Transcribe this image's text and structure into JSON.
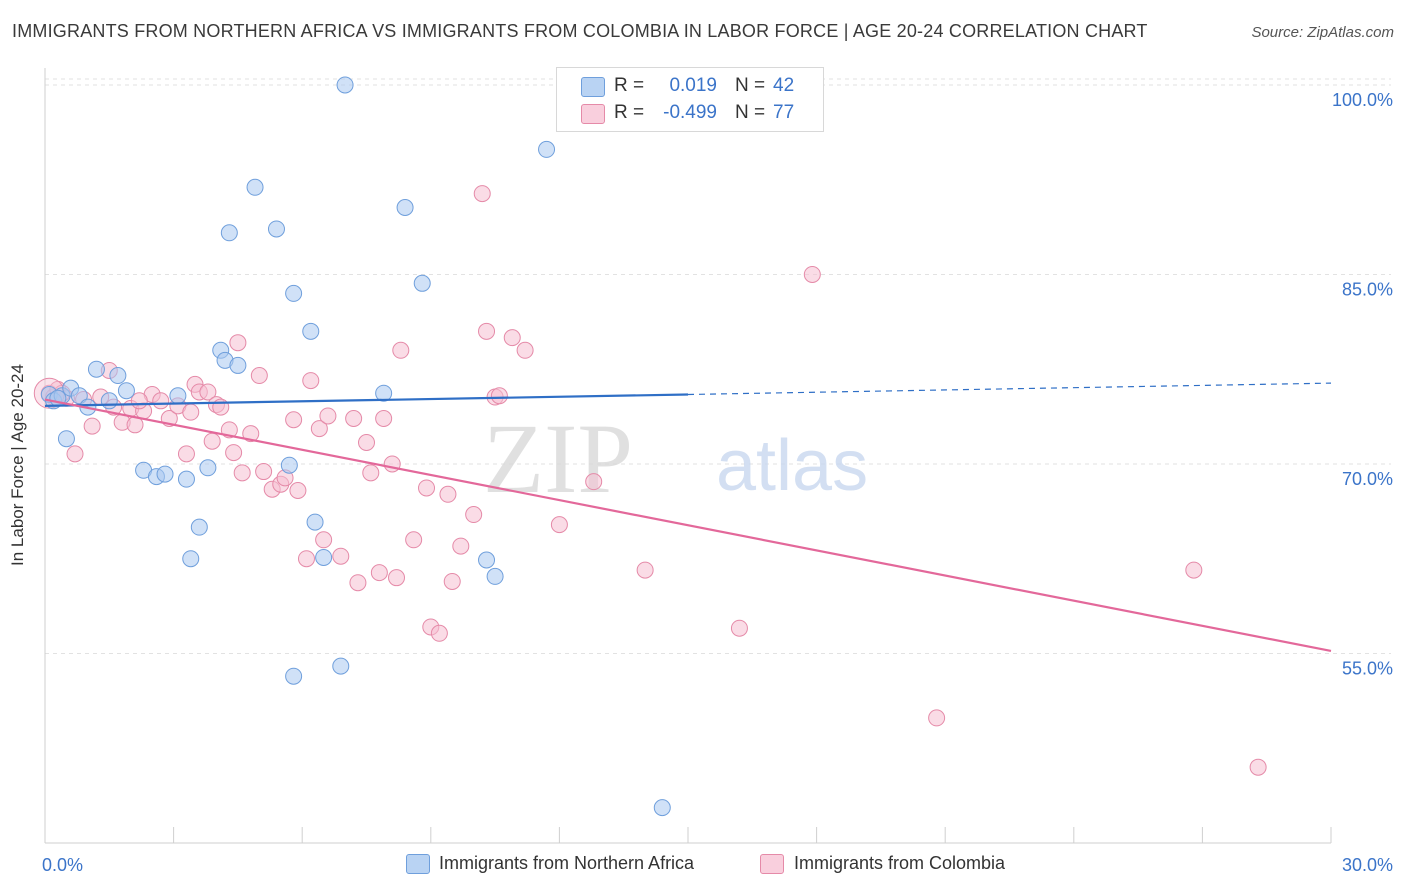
{
  "title": "IMMIGRANTS FROM NORTHERN AFRICA VS IMMIGRANTS FROM COLOMBIA IN LABOR FORCE | AGE 20-24 CORRELATION CHART",
  "source": "Source: ZipAtlas.com",
  "watermark": {
    "zip": "ZIP",
    "atlas": "atlas"
  },
  "legend": {
    "rows": [
      {
        "r_label": "R =",
        "r_value": "0.019",
        "n_label": "N =",
        "n_value": "42"
      },
      {
        "r_label": "R =",
        "r_value": "-0.499",
        "n_label": "N =",
        "n_value": "77"
      }
    ]
  },
  "bottom_legend": [
    "Immigrants from Northern Africa",
    "Immigrants from Colombia"
  ],
  "colors": {
    "blue_fill": "#a9c8f0",
    "blue_stroke": "#6f9fdc",
    "blue_line": "#2f6fc6",
    "pink_fill": "#f6c0d2",
    "pink_stroke": "#e58aa8",
    "pink_line": "#e3689a",
    "tick_label": "#3b74c9",
    "grid": "#e2e2e2"
  },
  "chart_data": {
    "type": "scatter",
    "title": "IMMIGRANTS FROM NORTHERN AFRICA VS IMMIGRANTS FROM COLOMBIA IN LABOR FORCE | AGE 20-24 CORRELATION CHART",
    "xlabel": "",
    "ylabel": "In Labor Force | Age 20-24",
    "xlim": [
      0.0,
      30.0
    ],
    "ylim": [
      40.0,
      101.5
    ],
    "x_tick_labels": [
      "0.0%",
      "30.0%"
    ],
    "y_ticks": [
      55.0,
      70.0,
      85.0,
      100.0
    ],
    "y_tick_labels": [
      "55.0%",
      "70.0%",
      "85.0%",
      "100.0%"
    ],
    "grid": true,
    "legend_position": "top-center",
    "series": [
      {
        "name": "Immigrants from Northern Africa",
        "color": "#a9c8f0",
        "points": [
          [
            0.1,
            75.5
          ],
          [
            0.2,
            75.0
          ],
          [
            0.4,
            75.4
          ],
          [
            0.5,
            72.0
          ],
          [
            0.6,
            76.0
          ],
          [
            0.8,
            75.4
          ],
          [
            1.0,
            74.5
          ],
          [
            1.2,
            77.5
          ],
          [
            1.5,
            75.0
          ],
          [
            1.7,
            77.0
          ],
          [
            1.9,
            75.8
          ],
          [
            2.3,
            69.5
          ],
          [
            2.6,
            69.0
          ],
          [
            2.8,
            69.2
          ],
          [
            3.1,
            75.4
          ],
          [
            3.3,
            68.8
          ],
          [
            3.6,
            65.0
          ],
          [
            3.4,
            62.5
          ],
          [
            3.8,
            69.7
          ],
          [
            4.1,
            79.0
          ],
          [
            4.2,
            78.2
          ],
          [
            4.3,
            88.3
          ],
          [
            4.5,
            77.8
          ],
          [
            4.9,
            91.9
          ],
          [
            5.4,
            88.6
          ],
          [
            5.8,
            83.5
          ],
          [
            5.7,
            69.9
          ],
          [
            6.3,
            65.4
          ],
          [
            6.5,
            62.6
          ],
          [
            5.8,
            53.2
          ],
          [
            6.9,
            54.0
          ],
          [
            6.2,
            80.5
          ],
          [
            7.0,
            100.0
          ],
          [
            7.9,
            75.6
          ],
          [
            8.4,
            90.3
          ],
          [
            8.8,
            84.3
          ],
          [
            10.3,
            62.4
          ],
          [
            10.5,
            61.1
          ],
          [
            11.7,
            94.9
          ],
          [
            13.5,
            100.0
          ],
          [
            14.4,
            42.8
          ],
          [
            0.3,
            75.2
          ]
        ]
      },
      {
        "name": "Immigrants from Colombia",
        "color": "#f6c0d2",
        "points": [
          [
            0.1,
            75.6
          ],
          [
            0.2,
            75.3
          ],
          [
            0.3,
            75.9
          ],
          [
            0.5,
            75.2
          ],
          [
            0.7,
            70.8
          ],
          [
            0.9,
            75.1
          ],
          [
            1.1,
            73.0
          ],
          [
            1.3,
            75.3
          ],
          [
            1.5,
            77.4
          ],
          [
            1.8,
            73.3
          ],
          [
            2.0,
            74.4
          ],
          [
            2.1,
            73.1
          ],
          [
            2.3,
            74.2
          ],
          [
            2.5,
            75.5
          ],
          [
            2.7,
            75.0
          ],
          [
            2.9,
            73.6
          ],
          [
            3.1,
            74.6
          ],
          [
            3.3,
            70.8
          ],
          [
            3.4,
            74.1
          ],
          [
            3.5,
            76.3
          ],
          [
            3.6,
            75.7
          ],
          [
            3.8,
            75.7
          ],
          [
            3.9,
            71.8
          ],
          [
            4.0,
            74.7
          ],
          [
            4.1,
            74.5
          ],
          [
            4.3,
            72.7
          ],
          [
            4.4,
            70.9
          ],
          [
            4.5,
            79.6
          ],
          [
            4.6,
            69.3
          ],
          [
            4.8,
            72.4
          ],
          [
            5.0,
            77.0
          ],
          [
            5.1,
            69.4
          ],
          [
            5.3,
            68.0
          ],
          [
            5.5,
            68.4
          ],
          [
            5.6,
            68.9
          ],
          [
            5.8,
            73.5
          ],
          [
            5.9,
            67.9
          ],
          [
            6.1,
            62.5
          ],
          [
            6.2,
            76.6
          ],
          [
            6.4,
            72.8
          ],
          [
            6.5,
            64.0
          ],
          [
            6.6,
            73.8
          ],
          [
            6.9,
            62.7
          ],
          [
            7.2,
            73.6
          ],
          [
            7.3,
            60.6
          ],
          [
            7.5,
            71.7
          ],
          [
            7.6,
            69.3
          ],
          [
            7.8,
            61.4
          ],
          [
            7.9,
            73.6
          ],
          [
            8.1,
            70.0
          ],
          [
            8.2,
            61.0
          ],
          [
            8.3,
            79.0
          ],
          [
            8.6,
            64.0
          ],
          [
            8.9,
            68.1
          ],
          [
            9.0,
            57.1
          ],
          [
            9.2,
            56.6
          ],
          [
            9.4,
            67.6
          ],
          [
            9.5,
            60.7
          ],
          [
            9.7,
            63.5
          ],
          [
            10.0,
            66.0
          ],
          [
            10.3,
            80.5
          ],
          [
            10.5,
            75.3
          ],
          [
            10.6,
            75.4
          ],
          [
            10.9,
            80.0
          ],
          [
            11.2,
            79.0
          ],
          [
            10.2,
            91.4
          ],
          [
            12.0,
            65.2
          ],
          [
            12.8,
            68.6
          ],
          [
            14.0,
            61.6
          ],
          [
            16.2,
            57.0
          ],
          [
            17.9,
            85.0
          ],
          [
            20.8,
            49.9
          ],
          [
            26.8,
            61.6
          ],
          [
            28.3,
            46.0
          ],
          [
            1.6,
            74.5
          ],
          [
            0.4,
            75.6
          ],
          [
            2.2,
            75.0
          ]
        ]
      }
    ],
    "trend_lines": [
      {
        "series": "Immigrants from Northern Africa",
        "x": [
          0.0,
          15.0
        ],
        "y": [
          74.6,
          75.5
        ],
        "dashed_extension_to": [
          30.0,
          76.4
        ]
      },
      {
        "series": "Immigrants from Colombia",
        "x": [
          0.0,
          30.0
        ],
        "y": [
          75.1,
          55.2
        ]
      }
    ]
  }
}
